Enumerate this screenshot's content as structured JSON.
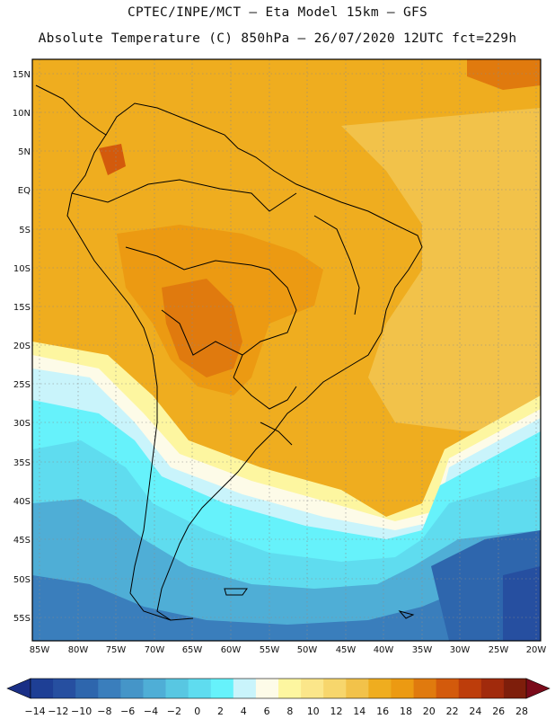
{
  "header": {
    "line1": "CPTEC/INPE/MCT –  Eta Model 15km – GFS",
    "line2": "Absolute Temperature (C) 850hPa – 26/07/2020 12UTC fct=229h"
  },
  "axes": {
    "lat_labels": [
      "15N",
      "10N",
      "5N",
      "EQ",
      "5S",
      "10S",
      "15S",
      "20S",
      "25S",
      "30S",
      "35S",
      "40S",
      "45S",
      "50S",
      "55S"
    ],
    "lon_labels": [
      "85W",
      "80W",
      "75W",
      "70W",
      "65W",
      "60W",
      "55W",
      "50W",
      "45W",
      "40W",
      "35W",
      "30W",
      "25W",
      "20W"
    ]
  },
  "colorbar": {
    "labels": [
      "−14",
      "−12",
      "−10",
      "−8",
      "−6",
      "−4",
      "−2",
      "0",
      "2",
      "4",
      "6",
      "8",
      "10",
      "12",
      "14",
      "16",
      "18",
      "20",
      "22",
      "24",
      "26",
      "28"
    ],
    "colors": [
      "#1e3f95",
      "#264fa0",
      "#2e66ad",
      "#3a7ebc",
      "#4595c8",
      "#4faed6",
      "#58c7e2",
      "#5fdcef",
      "#66f2fb",
      "#c9f4fb",
      "#fdfbe8",
      "#fdf6a0",
      "#fbe68a",
      "#f7d66c",
      "#f2c24a",
      "#efad1f",
      "#ec9a12",
      "#e07a0e",
      "#d35a0c",
      "#bd3d0b",
      "#a12a0c",
      "#7e1e0b"
    ],
    "low_arrow_color": "#1a2f86",
    "high_arrow_color": "#7a0a1a"
  }
}
